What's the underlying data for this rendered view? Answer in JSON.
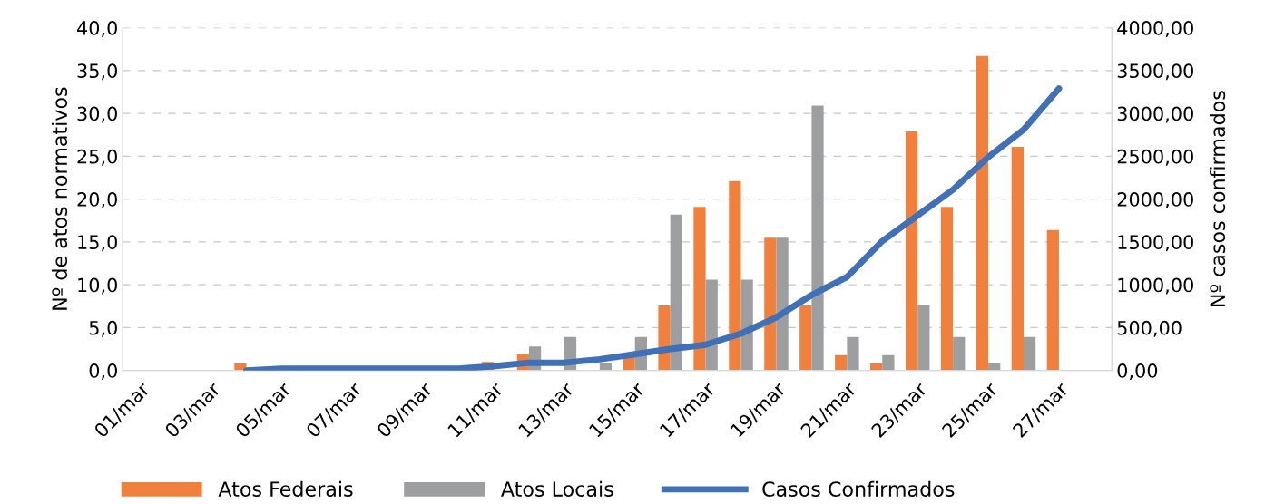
{
  "chart_data": {
    "type": "bar",
    "categories": [
      "01/mar",
      null,
      "03/mar",
      null,
      "05/mar",
      null,
      "07/mar",
      null,
      "09/mar",
      null,
      "11/mar",
      null,
      "13/mar",
      null,
      "15/mar",
      null,
      "17/mar",
      null,
      "19/mar",
      null,
      "21/mar",
      null,
      "23/mar",
      null,
      "25/mar",
      null,
      "27/mar",
      null
    ],
    "series": [
      {
        "name": "Atos Federais",
        "color": "#f0803c",
        "values": [
          null,
          null,
          null,
          0.9,
          null,
          null,
          null,
          null,
          null,
          null,
          1.0,
          1.9,
          null,
          null,
          1.7,
          7.6,
          19.1,
          22.1,
          15.5,
          7.6,
          1.8,
          0.9,
          27.9,
          19.1,
          36.7,
          26.1,
          16.4,
          null
        ]
      },
      {
        "name": "Atos Locais",
        "color": "#9c9e9f",
        "values": [
          null,
          null,
          null,
          null,
          null,
          null,
          null,
          null,
          null,
          null,
          null,
          2.8,
          3.9,
          0.9,
          3.9,
          18.2,
          10.6,
          10.6,
          15.5,
          30.9,
          3.9,
          1.8,
          7.6,
          3.9,
          0.9,
          3.9,
          null,
          null
        ]
      },
      {
        "name": "Casos Confirmados",
        "type": "line",
        "axis": "y2",
        "color": "#3f70b8",
        "values": [
          null,
          null,
          null,
          0,
          20,
          20,
          20,
          20,
          20,
          20,
          50,
          90,
          90,
          130,
          190,
          250,
          300,
          430,
          620,
          880,
          1090,
          1510,
          1810,
          2110,
          2490,
          2810,
          3290,
          null
        ]
      }
    ],
    "ylabel": "Nº de atos normativos",
    "y2label": "Nº casos confirmados",
    "ylim": [
      0,
      40
    ],
    "yticks": [
      {
        "value": 0,
        "label": "0,0"
      },
      {
        "value": 5,
        "label": "5,0"
      },
      {
        "value": 10,
        "label": "10,0"
      },
      {
        "value": 15,
        "label": "15,0"
      },
      {
        "value": 20,
        "label": "20,0"
      },
      {
        "value": 25,
        "label": "25,0"
      },
      {
        "value": 30,
        "label": "30,0"
      },
      {
        "value": 35,
        "label": "35,0"
      },
      {
        "value": 40,
        "label": "40,0"
      }
    ],
    "y2lim": [
      0,
      4000
    ],
    "y2ticks": [
      {
        "value": 0,
        "label": "0,00"
      },
      {
        "value": 500,
        "label": "500,00"
      },
      {
        "value": 1000,
        "label": "1000,00"
      },
      {
        "value": 1500,
        "label": "1500,00"
      },
      {
        "value": 2000,
        "label": "2000,00"
      },
      {
        "value": 2500,
        "label": "2500,00"
      },
      {
        "value": 3000,
        "label": "3000,00"
      },
      {
        "value": 3500,
        "label": "3500,00"
      },
      {
        "value": 4000,
        "label": "4000,00"
      }
    ],
    "grid": "y",
    "legend": "bottom",
    "line_style": "solid",
    "marker": "none"
  }
}
